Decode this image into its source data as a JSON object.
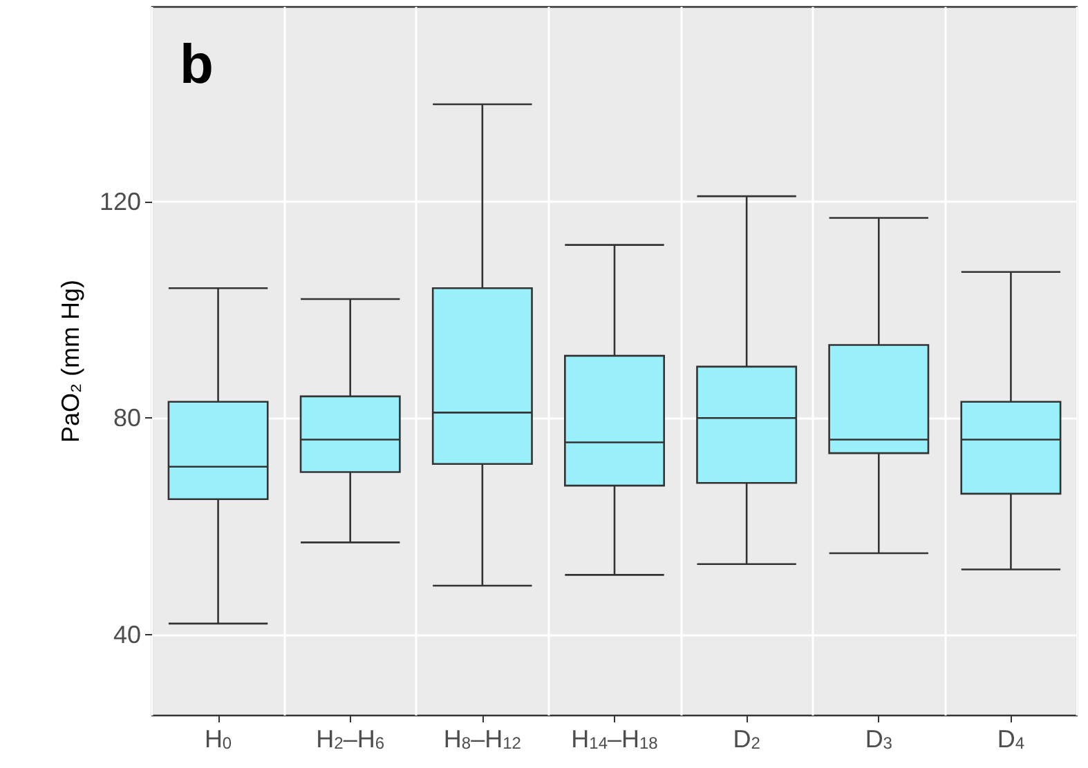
{
  "chart_data": {
    "type": "box",
    "title": "b",
    "ylabel": "PaO₂ (mm Hg)",
    "categories": [
      "H$_{0}$",
      "H$_{2}$–H$_{6}$",
      "H$_{8}$–H$_{12}$",
      "H$_{14}$–H$_{18}$",
      "D$_{2}$",
      "D$_{3}$",
      "D$_{4}$"
    ],
    "series": [
      {
        "color": "#9af0fa",
        "boxes": [
          {
            "low": 42,
            "q1": 65,
            "median": 71,
            "q3": 83,
            "high": 104
          },
          {
            "low": 57,
            "q1": 70,
            "median": 76,
            "q3": 84,
            "high": 102
          },
          {
            "low": 49,
            "q1": 71.5,
            "median": 81,
            "q3": 104,
            "high": 138
          },
          {
            "low": 51,
            "q1": 67.5,
            "median": 75.5,
            "q3": 91.5,
            "high": 112
          },
          {
            "low": 53,
            "q1": 68,
            "median": 80,
            "q3": 89.5,
            "high": 121
          },
          {
            "low": 55,
            "q1": 73.5,
            "median": 76,
            "q3": 93.5,
            "high": 117
          },
          {
            "low": 52,
            "q1": 66,
            "median": 76,
            "q3": 83,
            "high": 107
          }
        ]
      }
    ],
    "ylim": [
      25,
      156
    ],
    "yticks": [
      40,
      80,
      120
    ],
    "grid": true
  }
}
